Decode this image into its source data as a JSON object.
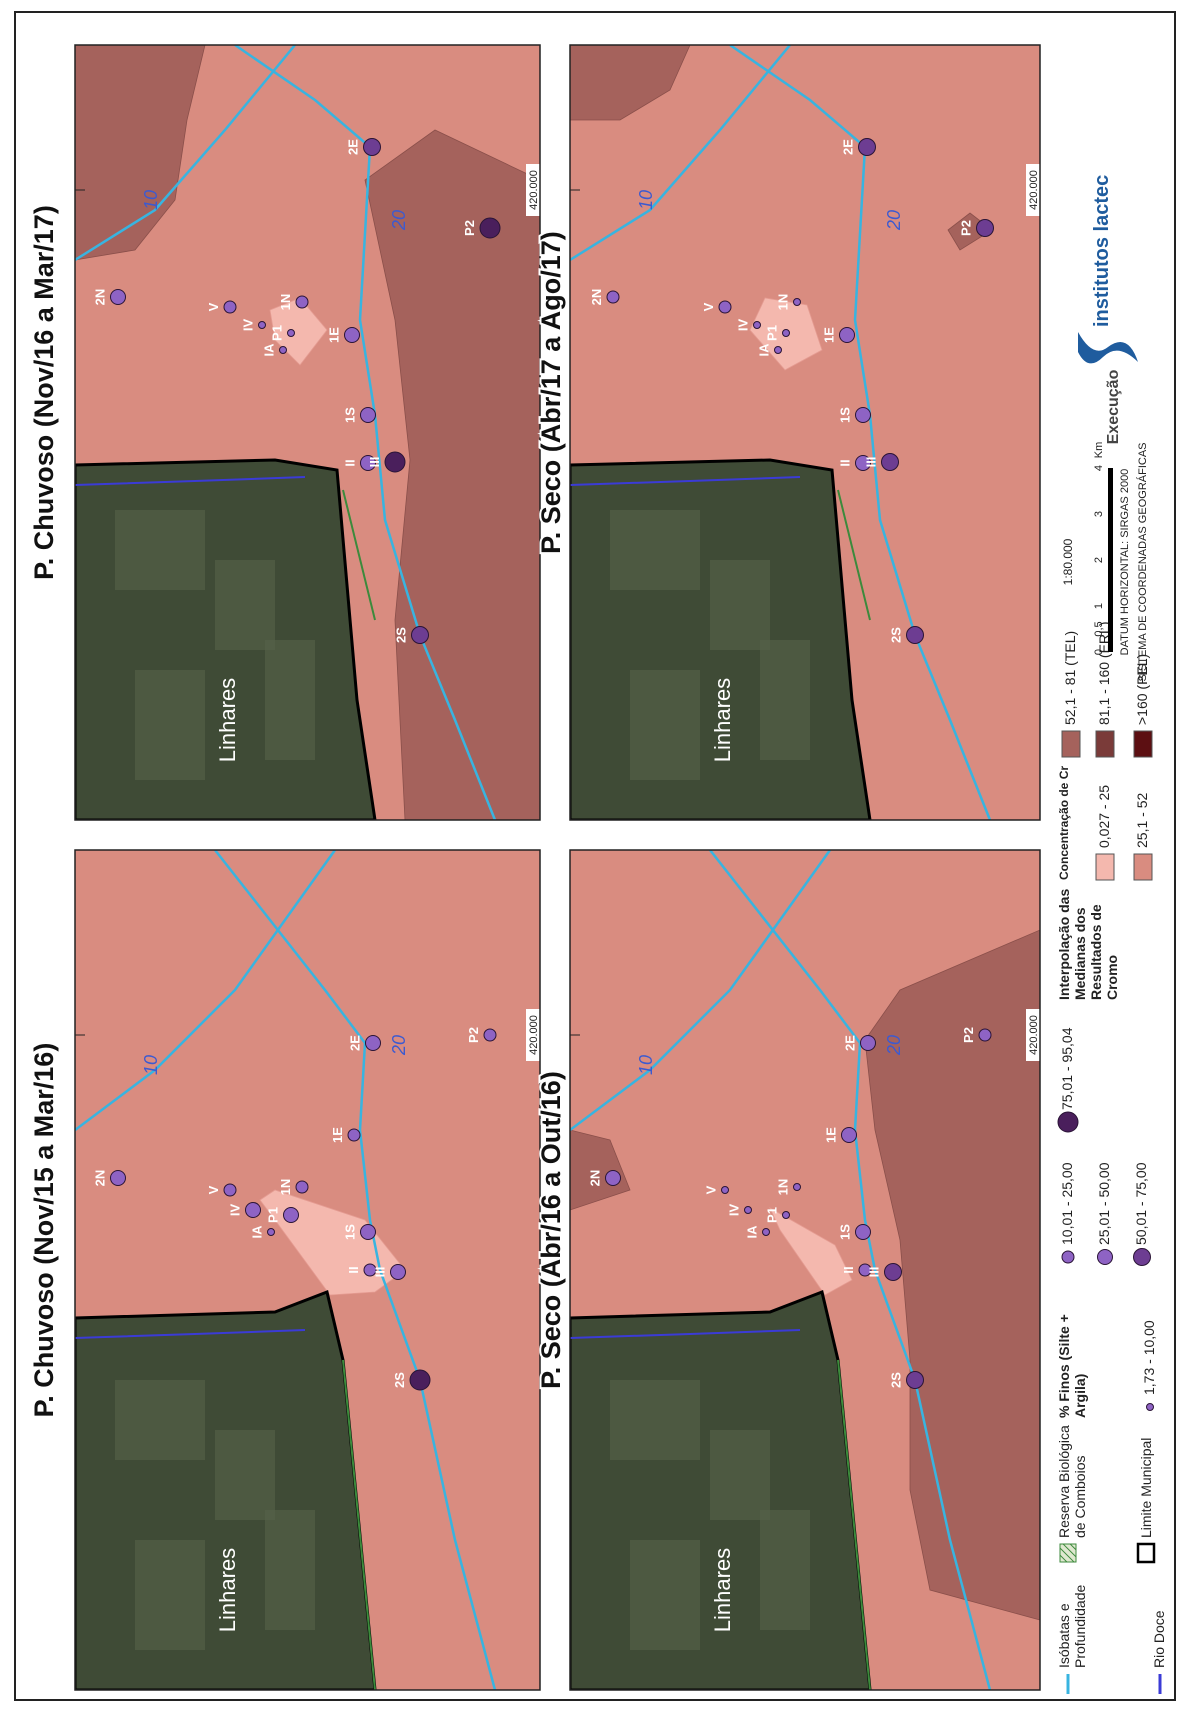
{
  "panels": [
    {
      "title": "P. Chuvoso (Nov/15 a Mar/16)",
      "place_label": "Linhares",
      "isobaths": [
        "10",
        "20"
      ],
      "coordinate": "420.000",
      "points": [
        {
          "label": "2S",
          "class": 4
        },
        {
          "label": "II",
          "class": 1
        },
        {
          "label": "III",
          "class": 2
        },
        {
          "label": "1S",
          "class": 2
        },
        {
          "label": "1E",
          "class": 1
        },
        {
          "label": "2E",
          "class": 2
        },
        {
          "label": "P2",
          "class": 1
        },
        {
          "label": "2N",
          "class": 2
        },
        {
          "label": "V",
          "class": 1
        },
        {
          "label": "IV",
          "class": 2
        },
        {
          "label": "IA",
          "class": 0
        },
        {
          "label": "P1",
          "class": 2
        },
        {
          "label": "1N",
          "class": 1
        }
      ]
    },
    {
      "title": "P. Chuvoso (Nov/16 a Mar/17)",
      "place_label": "Linhares",
      "isobaths": [
        "10",
        "20"
      ],
      "coordinate": "420.000",
      "points": [
        {
          "label": "2S",
          "class": 3
        },
        {
          "label": "II",
          "class": 2
        },
        {
          "label": "III",
          "class": 4
        },
        {
          "label": "1S",
          "class": 2
        },
        {
          "label": "1E",
          "class": 2
        },
        {
          "label": "2E",
          "class": 3
        },
        {
          "label": "P2",
          "class": 4
        },
        {
          "label": "2N",
          "class": 2
        },
        {
          "label": "V",
          "class": 1
        },
        {
          "label": "IV",
          "class": 0
        },
        {
          "label": "IA",
          "class": 0
        },
        {
          "label": "P1",
          "class": 0
        },
        {
          "label": "1N",
          "class": 1
        }
      ]
    },
    {
      "title": "P. Seco (Abr/16 a Out/16)",
      "place_label": "Linhares",
      "isobaths": [
        "10",
        "20"
      ],
      "coordinate": "420.000",
      "points": [
        {
          "label": "2S",
          "class": 3
        },
        {
          "label": "II",
          "class": 1
        },
        {
          "label": "III",
          "class": 3
        },
        {
          "label": "1S",
          "class": 2
        },
        {
          "label": "1E",
          "class": 2
        },
        {
          "label": "2E",
          "class": 2
        },
        {
          "label": "P2",
          "class": 1
        },
        {
          "label": "2N",
          "class": 2
        },
        {
          "label": "V",
          "class": 0
        },
        {
          "label": "IV",
          "class": 0
        },
        {
          "label": "IA",
          "class": 0
        },
        {
          "label": "P1",
          "class": 0
        },
        {
          "label": "1N",
          "class": 0
        }
      ]
    },
    {
      "title": "P. Seco (Abr/17 a Ago/17)",
      "place_label": "Linhares",
      "isobaths": [
        "10",
        "20"
      ],
      "coordinate": "420.000",
      "points": [
        {
          "label": "2S",
          "class": 3
        },
        {
          "label": "II",
          "class": 2
        },
        {
          "label": "III",
          "class": 3
        },
        {
          "label": "1S",
          "class": 2
        },
        {
          "label": "1E",
          "class": 2
        },
        {
          "label": "2E",
          "class": 3
        },
        {
          "label": "P2",
          "class": 3
        },
        {
          "label": "2N",
          "class": 1
        },
        {
          "label": "V",
          "class": 1
        },
        {
          "label": "IV",
          "class": 0
        },
        {
          "label": "IA",
          "class": 0
        },
        {
          "label": "P1",
          "class": 0
        },
        {
          "label": "1N",
          "class": 0
        }
      ]
    }
  ],
  "legend": {
    "isobaths": "Isóbatas e Profundidade",
    "river": "Rio Doce",
    "reserve": "Reserva Biológica de Comboios",
    "municipal": "Limite Municipal",
    "fines_title": "% Finos (Silte + Argila)",
    "fines_classes": [
      "1,73 - 10,00",
      "10,01 - 25,00",
      "25,01 - 50,00",
      "50,01 - 75,00",
      "75,01 - 95,04"
    ],
    "interp_title": "Interpolação das Medianas dos Resultados de Cromo",
    "cr_title": "Concentração de Cr",
    "cr_classes": [
      "0,027 - 25",
      "25,1 - 52",
      "52,1 - 81 (TEL)",
      "81,1 - 160 (ERL)",
      ">160 (PEL)"
    ],
    "scale": "1:80.000",
    "scale_ticks": [
      "0",
      "0,5",
      "1",
      "2",
      "3",
      "4"
    ],
    "scale_unit": "Km",
    "datum": "DATUM HORIZONTAL: SIRGAS 2000",
    "system": "SISTEMA DE COORDENADAS GEOGRÁFICAS",
    "execution": "Execução",
    "logo": "institutos lactec"
  }
}
